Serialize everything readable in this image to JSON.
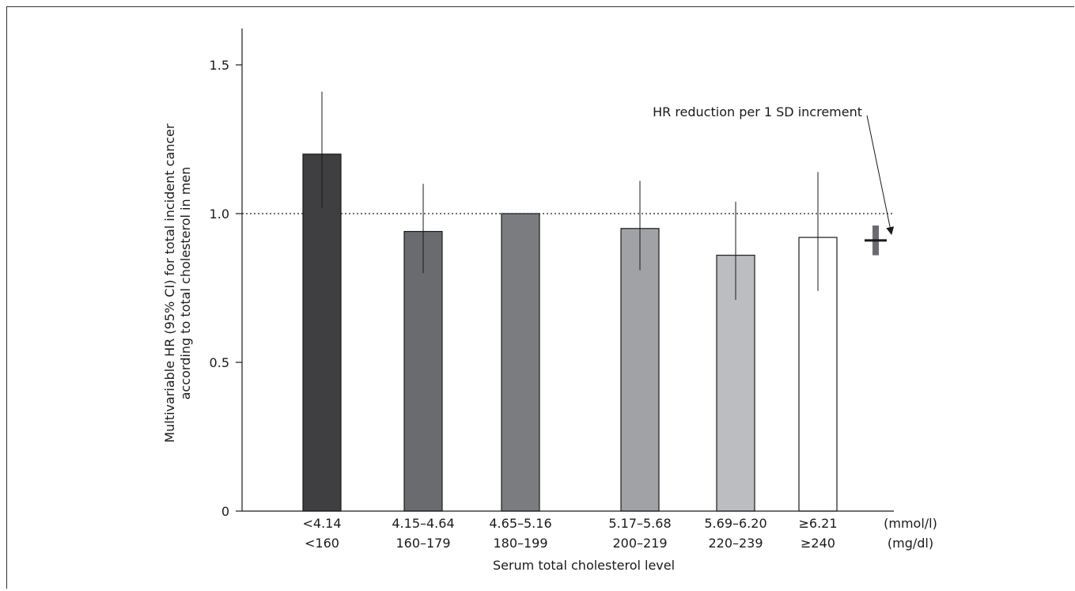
{
  "chart_data": {
    "type": "bar",
    "xlabel": "Serum total cholesterol level",
    "ylabel_lines": [
      "Multivariable HR (95% CI) for total incident cancer",
      "according to total cholesterol in men"
    ],
    "ylim": [
      0,
      1.6
    ],
    "yticks": [
      "0",
      "0.5",
      "1.0",
      "1.5"
    ],
    "ytick_values": [
      0,
      0.5,
      1.0,
      1.5
    ],
    "reference_line": 1.0,
    "categories": [
      {
        "mmol": "<4.14",
        "mgdl": "<160",
        "value": 1.2,
        "ci_low": 1.02,
        "ci_high": 1.41,
        "color": "#3f3f41"
      },
      {
        "mmol": "4.15–4.64",
        "mgdl": "160–179",
        "value": 0.94,
        "ci_low": 0.8,
        "ci_high": 1.1,
        "color": "#6a6b6f"
      },
      {
        "mmol": "4.65–5.16",
        "mgdl": "180–199",
        "value": 1.0,
        "ci_low": null,
        "ci_high": null,
        "color": "#7b7c80"
      },
      {
        "mmol": "5.17–5.68",
        "mgdl": "200–219",
        "value": 0.95,
        "ci_low": 0.81,
        "ci_high": 1.11,
        "color": "#a1a2a6"
      },
      {
        "mmol": "5.69–6.20",
        "mgdl": "220–239",
        "value": 0.86,
        "ci_low": 0.71,
        "ci_high": 1.04,
        "color": "#bcbdc1"
      },
      {
        "mmol": "≥6.21",
        "mgdl": "≥240",
        "value": 0.92,
        "ci_low": 0.74,
        "ci_high": 1.14,
        "color": "#ffffff"
      }
    ],
    "unit_labels": {
      "mmol": "(mmol/l)",
      "mgdl": "(mg/dl)"
    },
    "per_sd": {
      "label": "HR reduction per 1 SD increment",
      "value": 0.91,
      "ci_low": 0.86,
      "ci_high": 0.96,
      "bar_color": "#6a6b6f",
      "marker_color": "#1a1a1a"
    },
    "grid": false
  }
}
